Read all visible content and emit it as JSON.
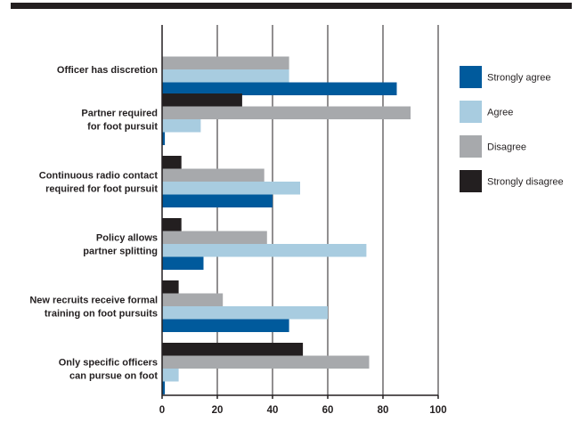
{
  "chart_data": {
    "type": "bar",
    "orientation": "horizontal",
    "categories": [
      [
        "Officer has discretion"
      ],
      [
        "Partner required",
        "for foot pursuit"
      ],
      [
        "Continuous radio contact",
        "required for foot pursuit"
      ],
      [
        "Policy allows",
        "partner splitting"
      ],
      [
        "New recruits receive formal",
        "training on foot pursuits"
      ],
      [
        "Only specific officers",
        "can pursue on foot"
      ]
    ],
    "series": [
      {
        "name": "Strongly disagree",
        "color": "#231f20",
        "values": [
          0,
          29,
          7,
          7,
          6,
          51
        ]
      },
      {
        "name": "Disagree",
        "color": "#a7a9ac",
        "values": [
          46,
          90,
          37,
          38,
          22,
          75
        ]
      },
      {
        "name": "Agree",
        "color": "#a8cce0",
        "values": [
          46,
          14,
          50,
          74,
          60,
          6
        ]
      },
      {
        "name": "Strongly agree",
        "color": "#005a9c",
        "values": [
          85,
          1,
          40,
          15,
          46,
          1
        ]
      }
    ],
    "legend": {
      "position": "right",
      "order": [
        "Strongly agree",
        "Agree",
        "Disagree",
        "Strongly disagree"
      ]
    },
    "xlim": [
      0,
      100
    ],
    "xticks": [
      0,
      20,
      40,
      60,
      80,
      100
    ],
    "grid": true,
    "title": "",
    "xlabel": "",
    "ylabel": ""
  }
}
